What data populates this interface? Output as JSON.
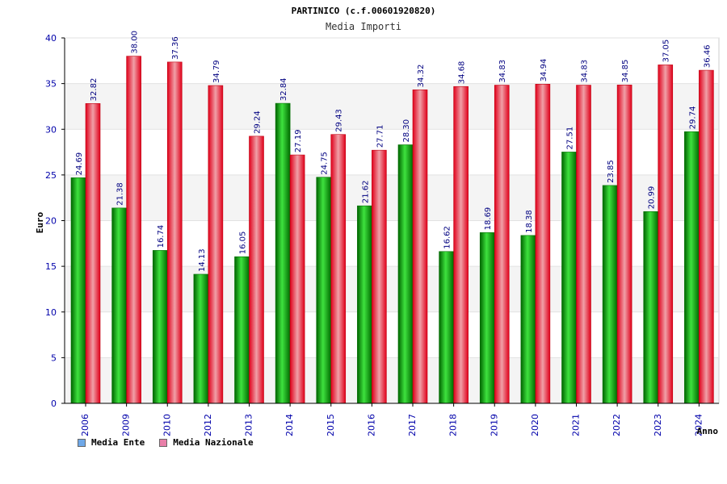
{
  "chart_data": {
    "type": "bar",
    "title": "PARTINICO (c.f.00601920820)",
    "subtitle": "Media Importi",
    "ylabel": "Euro",
    "xlabel": "Anno",
    "ylim": [
      0,
      40
    ],
    "yticks": [
      0,
      5,
      10,
      15,
      20,
      25,
      30,
      35,
      40
    ],
    "categories": [
      "2006",
      "2009",
      "2010",
      "2012",
      "2013",
      "2014",
      "2015",
      "2016",
      "2017",
      "2018",
      "2019",
      "2020",
      "2021",
      "2022",
      "2023",
      "2024"
    ],
    "series": [
      {
        "name": "Media Ente",
        "color": "#00b400",
        "legend_color": "#6fa8e8",
        "values": [
          24.69,
          21.38,
          16.74,
          14.13,
          16.05,
          32.84,
          24.75,
          21.62,
          28.3,
          16.62,
          18.69,
          18.38,
          27.51,
          23.85,
          20.99,
          29.74
        ],
        "labels": [
          "24.69",
          "21.38",
          "16.74",
          "14.13",
          "16.05",
          "32.84",
          "24.75",
          "21.62",
          "28.30",
          "16.62",
          "18.69",
          "18.38",
          "27.51",
          "23.85",
          "20.99",
          "29.74"
        ]
      },
      {
        "name": "Media Nazionale",
        "color": "#e8101e",
        "legend_color": "#e87fa8",
        "values": [
          32.82,
          38.0,
          37.36,
          34.79,
          29.24,
          27.19,
          29.43,
          27.71,
          34.32,
          34.68,
          34.83,
          34.94,
          34.83,
          34.85,
          37.05,
          36.46
        ],
        "labels": [
          "32.82",
          "38.00",
          "37.36",
          "34.79",
          "29.24",
          "27.19",
          "29.43",
          "27.71",
          "34.32",
          "34.68",
          "34.83",
          "34.94",
          "34.83",
          "34.85",
          "37.05",
          "36.46"
        ]
      }
    ],
    "grid": true,
    "legend_position": "bottom-left"
  }
}
